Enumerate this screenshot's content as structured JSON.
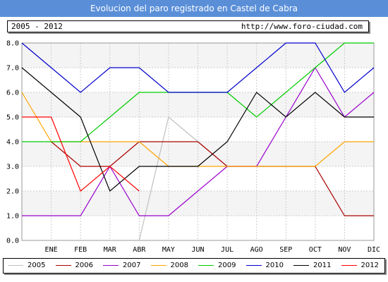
{
  "header": {
    "title": "Evolucion del paro registrado en Castel de Cabra",
    "period": "2005 - 2012",
    "url": "http://www.foro-ciudad.com"
  },
  "chart_data": {
    "type": "line",
    "title": "Evolucion del paro registrado en Castel de Cabra",
    "categories": [
      "",
      "ENE",
      "FEB",
      "MAR",
      "ABR",
      "MAY",
      "JUN",
      "JUL",
      "AGO",
      "SEP",
      "OCT",
      "NOV",
      "DIC"
    ],
    "ylim": [
      0,
      8
    ],
    "yticks": [
      "0.0",
      "1.0",
      "2.0",
      "3.0",
      "4.0",
      "5.0",
      "6.0",
      "7.0",
      "8.0"
    ],
    "grid": true,
    "legend_position": "bottom",
    "series": [
      {
        "name": "2005",
        "color": "#c0c0c0",
        "values": [
          null,
          null,
          null,
          null,
          0,
          5,
          4,
          3,
          null,
          null,
          null,
          null,
          null
        ]
      },
      {
        "name": "2006",
        "color": "#aa0000",
        "values": [
          null,
          4,
          3,
          3,
          4,
          4,
          4,
          3,
          3,
          3,
          3,
          1,
          1
        ]
      },
      {
        "name": "2007",
        "color": "#9900cc",
        "values": [
          1,
          1,
          1,
          3,
          1,
          1,
          2,
          3,
          3,
          5,
          7,
          5,
          6
        ]
      },
      {
        "name": "2008",
        "color": "#ffa500",
        "values": [
          6,
          4,
          4,
          4,
          4,
          3,
          3,
          3,
          3,
          3,
          3,
          4,
          4
        ]
      },
      {
        "name": "2009",
        "color": "#00cc00",
        "values": [
          4,
          4,
          4,
          5,
          6,
          6,
          6,
          6,
          5,
          6,
          7,
          8,
          8
        ]
      },
      {
        "name": "2010",
        "color": "#0000cc",
        "values": [
          8,
          7,
          6,
          7,
          7,
          6,
          6,
          6,
          7,
          8,
          8,
          6,
          7
        ]
      },
      {
        "name": "2011",
        "color": "#000000",
        "values": [
          7,
          6,
          5,
          2,
          3,
          3,
          3,
          4,
          6,
          5,
          6,
          5,
          5
        ]
      },
      {
        "name": "2012",
        "color": "#ff0000",
        "values": [
          5,
          5,
          2,
          3,
          2,
          null,
          null,
          null,
          null,
          null,
          null,
          null,
          null
        ]
      }
    ]
  }
}
